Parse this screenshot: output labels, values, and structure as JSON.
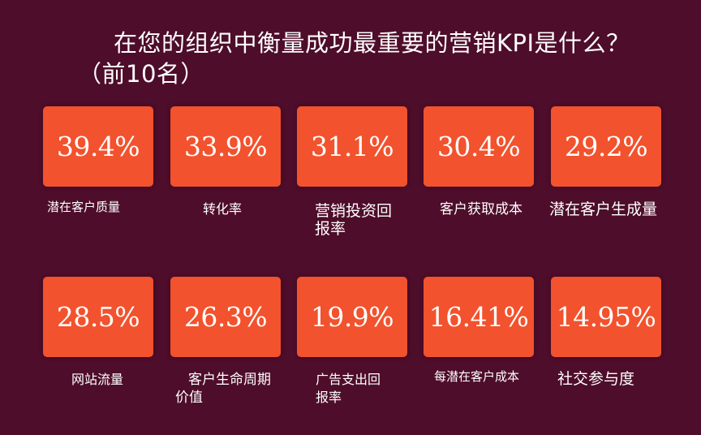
{
  "chart_data": {
    "type": "table",
    "title": "在您的组织中衡量成功最重要的营销KPI是什么？（前10名）",
    "series": [
      {
        "values": [
          39.4,
          33.9,
          31.1,
          30.4,
          29.2,
          28.5,
          26.3,
          19.9,
          16.41,
          14.95
        ]
      }
    ],
    "categories": [
      "潜在客户质量",
      "转化率",
      "营销投资回报率",
      "客户获取成本",
      "潜在客户生成量",
      "网站流量",
      "客户生命周期价值",
      "广告支出回报率",
      "每潜在客户成本",
      "社交参与度"
    ],
    "value_labels": [
      "39.4%",
      "33.9%",
      "31.1%",
      "30.4%",
      "29.2%",
      "28.5%",
      "26.3%",
      "19.9%",
      "16.41%",
      "14.95%"
    ],
    "colors": {
      "background": "#4e0d2a",
      "tile": "#f2522d",
      "text": "#ffffff"
    }
  }
}
